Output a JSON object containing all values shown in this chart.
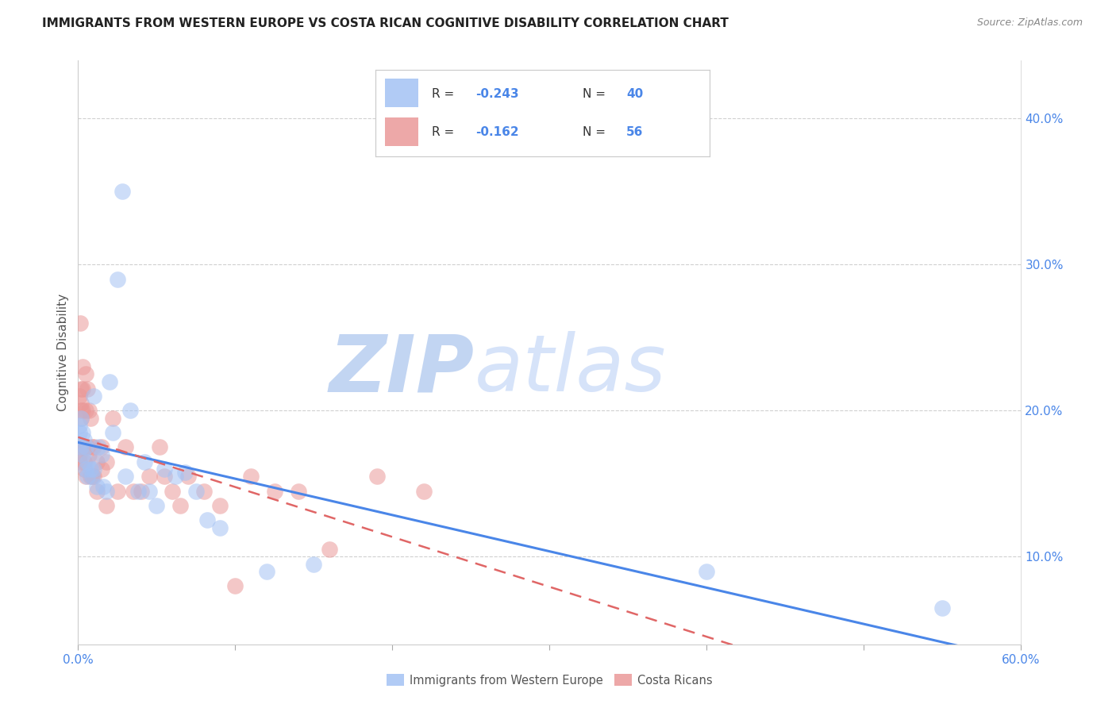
{
  "title": "IMMIGRANTS FROM WESTERN EUROPE VS COSTA RICAN COGNITIVE DISABILITY CORRELATION CHART",
  "source": "Source: ZipAtlas.com",
  "ylabel": "Cognitive Disability",
  "right_ytick_labels": [
    "10.0%",
    "20.0%",
    "30.0%",
    "40.0%"
  ],
  "right_yticks": [
    0.1,
    0.2,
    0.3,
    0.4
  ],
  "legend_label1": "Immigrants from Western Europe",
  "legend_label2": "Costa Ricans",
  "legend_r1_text": "R = ",
  "legend_r1_val": "-0.243",
  "legend_n1_text": "N = ",
  "legend_n1_val": "40",
  "legend_r2_text": "R = ",
  "legend_r2_val": "-0.162",
  "legend_n2_text": "N = ",
  "legend_n2_val": "56",
  "blue_color": "#a4c2f4",
  "pink_color": "#ea9999",
  "blue_line_color": "#4a86e8",
  "pink_line_color": "#e06666",
  "watermark": "ZIPatlas",
  "watermark_color": "#c9daf8",
  "title_fontsize": 11,
  "blue_scatter_x": [
    0.001,
    0.001,
    0.002,
    0.002,
    0.003,
    0.003,
    0.004,
    0.005,
    0.005,
    0.006,
    0.006,
    0.008,
    0.009,
    0.01,
    0.01,
    0.012,
    0.013,
    0.015,
    0.016,
    0.018,
    0.02,
    0.022,
    0.025,
    0.028,
    0.03,
    0.033,
    0.038,
    0.042,
    0.045,
    0.05,
    0.055,
    0.062,
    0.068,
    0.075,
    0.082,
    0.09,
    0.12,
    0.15,
    0.4,
    0.55
  ],
  "blue_scatter_y": [
    0.19,
    0.185,
    0.195,
    0.175,
    0.185,
    0.17,
    0.18,
    0.175,
    0.16,
    0.165,
    0.155,
    0.16,
    0.155,
    0.21,
    0.16,
    0.148,
    0.175,
    0.17,
    0.148,
    0.145,
    0.22,
    0.185,
    0.29,
    0.35,
    0.155,
    0.2,
    0.145,
    0.165,
    0.145,
    0.135,
    0.16,
    0.155,
    0.158,
    0.145,
    0.125,
    0.12,
    0.09,
    0.095,
    0.09,
    0.065
  ],
  "pink_scatter_x": [
    0.0005,
    0.001,
    0.001,
    0.001,
    0.0015,
    0.002,
    0.002,
    0.002,
    0.002,
    0.003,
    0.003,
    0.003,
    0.003,
    0.004,
    0.004,
    0.004,
    0.005,
    0.005,
    0.005,
    0.005,
    0.006,
    0.006,
    0.007,
    0.007,
    0.008,
    0.008,
    0.009,
    0.009,
    0.01,
    0.01,
    0.012,
    0.012,
    0.015,
    0.015,
    0.018,
    0.018,
    0.022,
    0.025,
    0.03,
    0.035,
    0.04,
    0.045,
    0.052,
    0.055,
    0.06,
    0.065,
    0.07,
    0.08,
    0.09,
    0.1,
    0.11,
    0.125,
    0.14,
    0.16,
    0.19,
    0.22
  ],
  "pink_scatter_y": [
    0.175,
    0.21,
    0.17,
    0.165,
    0.26,
    0.215,
    0.205,
    0.2,
    0.195,
    0.23,
    0.215,
    0.2,
    0.175,
    0.175,
    0.165,
    0.16,
    0.225,
    0.2,
    0.175,
    0.155,
    0.215,
    0.175,
    0.2,
    0.17,
    0.195,
    0.155,
    0.175,
    0.155,
    0.175,
    0.155,
    0.165,
    0.145,
    0.175,
    0.16,
    0.165,
    0.135,
    0.195,
    0.145,
    0.175,
    0.145,
    0.145,
    0.155,
    0.175,
    0.155,
    0.145,
    0.135,
    0.155,
    0.145,
    0.135,
    0.08,
    0.155,
    0.145,
    0.145,
    0.105,
    0.155,
    0.145
  ],
  "xlim": [
    0.0,
    0.6
  ],
  "ylim": [
    0.04,
    0.44
  ],
  "xtick_positions": [
    0.0,
    0.1,
    0.2,
    0.3,
    0.4,
    0.5,
    0.6
  ]
}
